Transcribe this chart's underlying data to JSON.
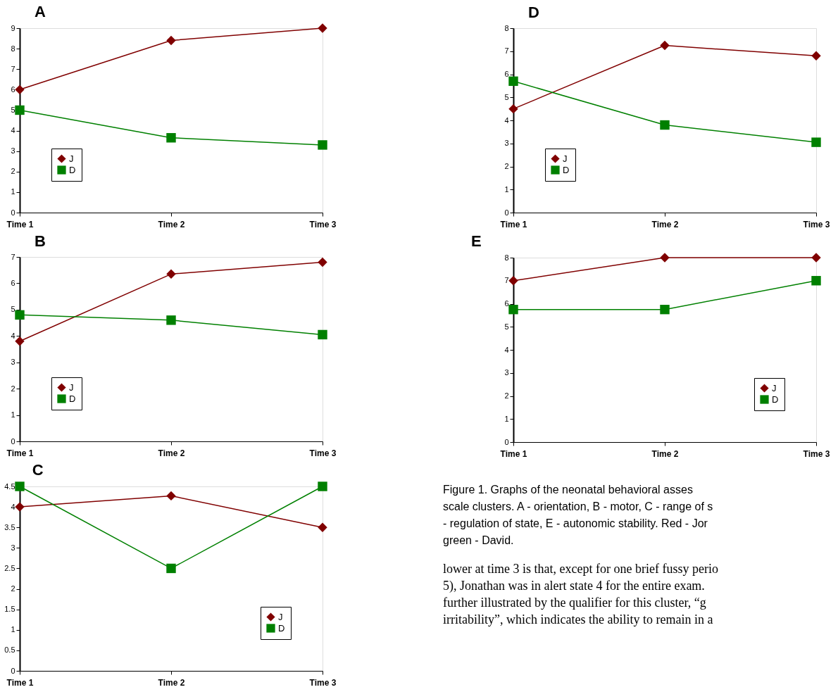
{
  "chart_data": [
    {
      "type": "line",
      "title": "A",
      "categories": [
        "Time 1",
        "Time 2",
        "Time 3"
      ],
      "ylim": [
        0,
        9
      ],
      "yticks": [
        0,
        1,
        2,
        3,
        4,
        5,
        6,
        7,
        8,
        9
      ],
      "legend": "bottom left",
      "grid": false,
      "series": [
        {
          "name": "J",
          "color": "#800000",
          "marker": "diamond",
          "values": [
            6,
            8.4,
            9
          ]
        },
        {
          "name": "D",
          "color": "#008000",
          "marker": "square",
          "values": [
            5,
            3.65,
            3.3
          ]
        }
      ]
    },
    {
      "type": "line",
      "title": "B",
      "categories": [
        "Time 1",
        "Time 2",
        "Time 3"
      ],
      "ylim": [
        0,
        7
      ],
      "yticks": [
        0,
        1,
        2,
        3,
        4,
        5,
        6,
        7
      ],
      "legend": "bottom left",
      "grid": false,
      "series": [
        {
          "name": "J",
          "color": "#800000",
          "marker": "diamond",
          "values": [
            3.8,
            6.35,
            6.8
          ]
        },
        {
          "name": "D",
          "color": "#008000",
          "marker": "square",
          "values": [
            4.8,
            4.6,
            4.05
          ]
        }
      ]
    },
    {
      "type": "line",
      "title": "C",
      "categories": [
        "Time 1",
        "Time 2",
        "Time 3"
      ],
      "ylim": [
        0,
        4.5
      ],
      "yticks": [
        0,
        0.5,
        1,
        1.5,
        2,
        2.5,
        3,
        3.5,
        4,
        4.5
      ],
      "legend": "bottom right",
      "grid": false,
      "series": [
        {
          "name": "J",
          "color": "#800000",
          "marker": "diamond",
          "values": [
            4,
            4.27,
            3.5
          ]
        },
        {
          "name": "D",
          "color": "#008000",
          "marker": "square",
          "values": [
            4.5,
            2.5,
            4.5
          ]
        }
      ]
    },
    {
      "type": "line",
      "title": "D",
      "categories": [
        "Time 1",
        "Time 2",
        "Time 3"
      ],
      "ylim": [
        0,
        8
      ],
      "yticks": [
        0,
        1,
        2,
        3,
        4,
        5,
        6,
        7,
        8
      ],
      "legend": "bottom left",
      "grid": false,
      "series": [
        {
          "name": "J",
          "color": "#800000",
          "marker": "diamond",
          "values": [
            4.5,
            7.25,
            6.8
          ]
        },
        {
          "name": "D",
          "color": "#008000",
          "marker": "square",
          "values": [
            5.7,
            3.8,
            3.05
          ]
        }
      ]
    },
    {
      "type": "line",
      "title": "E",
      "categories": [
        "Time 1",
        "Time 2",
        "Time 3"
      ],
      "ylim": [
        0,
        8
      ],
      "yticks": [
        0,
        1,
        2,
        3,
        4,
        5,
        6,
        7,
        8
      ],
      "legend": "bottom right",
      "grid": false,
      "series": [
        {
          "name": "J",
          "color": "#800000",
          "marker": "diamond",
          "values": [
            7,
            8,
            8
          ]
        },
        {
          "name": "D",
          "color": "#008000",
          "marker": "square",
          "values": [
            5.75,
            5.75,
            7
          ]
        }
      ],
      "annotations": [
        "Figure 1.  Graphs of the neonatal behavioral asses",
        "scale clusters.  A - orientation, B - motor, C - range of s",
        "- regulation of state, E - autonomic stability.  Red - Jor",
        "green - David.",
        "lower at time 3 is that, except for one brief fussy perio",
        "5), Jonathan was in alert state 4 for the entire exam.",
        "further illustrated by the qualifier for this cluster, “g",
        "irritability”, which indicates the ability to remain in a"
      ]
    }
  ]
}
